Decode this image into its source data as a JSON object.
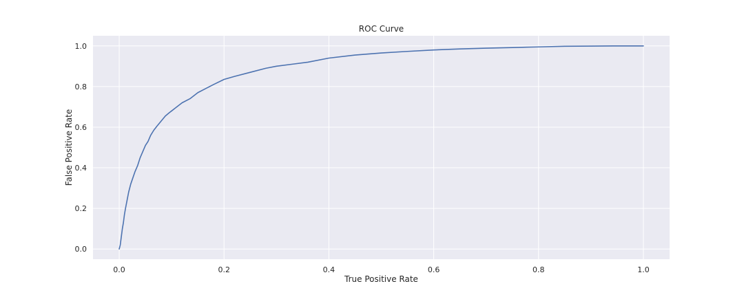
{
  "chart_data": {
    "type": "line",
    "title": "ROC Curve",
    "xlabel": "True Positive Rate",
    "ylabel": "False Positive Rate",
    "xlim": [
      -0.05,
      1.05
    ],
    "ylim": [
      -0.05,
      1.05
    ],
    "xticks": [
      "0.0",
      "0.2",
      "0.4",
      "0.6",
      "0.8",
      "1.0"
    ],
    "xtick_values": [
      0.0,
      0.2,
      0.4,
      0.6,
      0.8,
      1.0
    ],
    "yticks": [
      "0.0",
      "0.2",
      "0.4",
      "0.6",
      "0.8",
      "1.0"
    ],
    "ytick_values": [
      0.0,
      0.2,
      0.4,
      0.6,
      0.8,
      1.0
    ],
    "grid": true,
    "background_color": "#eaeaf2",
    "grid_color": "#ffffff",
    "series": [
      {
        "color": "#4c72b0",
        "x": [
          0.0,
          0.002,
          0.004,
          0.006,
          0.008,
          0.01,
          0.012,
          0.015,
          0.018,
          0.022,
          0.026,
          0.03,
          0.035,
          0.04,
          0.045,
          0.05,
          0.055,
          0.06,
          0.066,
          0.072,
          0.08,
          0.088,
          0.095,
          0.1,
          0.11,
          0.12,
          0.135,
          0.15,
          0.165,
          0.18,
          0.2,
          0.22,
          0.25,
          0.28,
          0.3,
          0.33,
          0.36,
          0.4,
          0.45,
          0.5,
          0.55,
          0.6,
          0.65,
          0.7,
          0.75,
          0.8,
          0.85,
          0.9,
          0.95,
          1.0
        ],
        "y": [
          0.0,
          0.02,
          0.06,
          0.1,
          0.13,
          0.17,
          0.2,
          0.24,
          0.28,
          0.32,
          0.35,
          0.38,
          0.41,
          0.45,
          0.48,
          0.51,
          0.53,
          0.56,
          0.585,
          0.605,
          0.63,
          0.655,
          0.67,
          0.68,
          0.7,
          0.72,
          0.74,
          0.77,
          0.79,
          0.81,
          0.835,
          0.85,
          0.87,
          0.89,
          0.9,
          0.91,
          0.92,
          0.94,
          0.955,
          0.965,
          0.973,
          0.98,
          0.985,
          0.989,
          0.992,
          0.995,
          0.998,
          0.999,
          1.0,
          1.0
        ]
      }
    ]
  }
}
